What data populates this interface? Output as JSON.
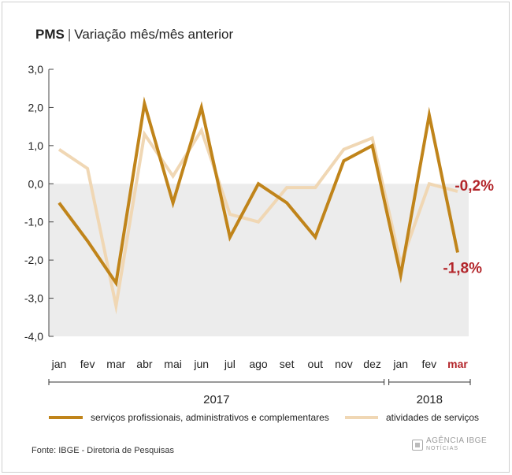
{
  "header": {
    "title_bold": "PMS",
    "separator": "|",
    "title_rest": "Variação mês/mês anterior"
  },
  "footer": {
    "source": "Fonte: IBGE - Diretoria de Pesquisas",
    "logo_text": "AGÊNCIA IBGE",
    "logo_sub": "NOTÍCIAS"
  },
  "colors": {
    "series1": "#c0841a",
    "series2": "#f0d7b4",
    "highlight": "#b3262b",
    "negative_band": "#ececec"
  },
  "chart_data": {
    "type": "line",
    "categories": [
      "jan",
      "fev",
      "mar",
      "abr",
      "mai",
      "jun",
      "jul",
      "ago",
      "set",
      "out",
      "nov",
      "dez",
      "jan",
      "fev",
      "mar"
    ],
    "highlight_category_index": 14,
    "years": [
      {
        "label": "2017",
        "from": 0,
        "to": 11
      },
      {
        "label": "2018",
        "from": 12,
        "to": 14
      }
    ],
    "ylim": [
      -4.0,
      3.0
    ],
    "yticks": [
      "3,0",
      "2,0",
      "1,0",
      "0,0",
      "-1,0",
      "-2,0",
      "-3,0",
      "-4,0"
    ],
    "ytick_values": [
      3,
      2,
      1,
      0,
      -1,
      -2,
      -3,
      -4
    ],
    "series": [
      {
        "name": "atividades de serviços",
        "values": [
          0.9,
          0.4,
          -3.2,
          1.3,
          0.2,
          1.4,
          -0.8,
          -1.0,
          -0.1,
          -0.1,
          0.9,
          1.2,
          -2.1,
          0.0,
          -0.2
        ],
        "end_label": "-0,2%"
      },
      {
        "name": "serviços profissionais, administrativos e complementares",
        "values": [
          -0.5,
          -1.5,
          -2.6,
          2.1,
          -0.5,
          2.0,
          -1.4,
          0.0,
          -0.5,
          -1.4,
          0.6,
          1.0,
          -2.4,
          1.8,
          -1.8
        ],
        "end_label": "-1,8%"
      }
    ],
    "legend_position": "bottom",
    "grid": false
  }
}
